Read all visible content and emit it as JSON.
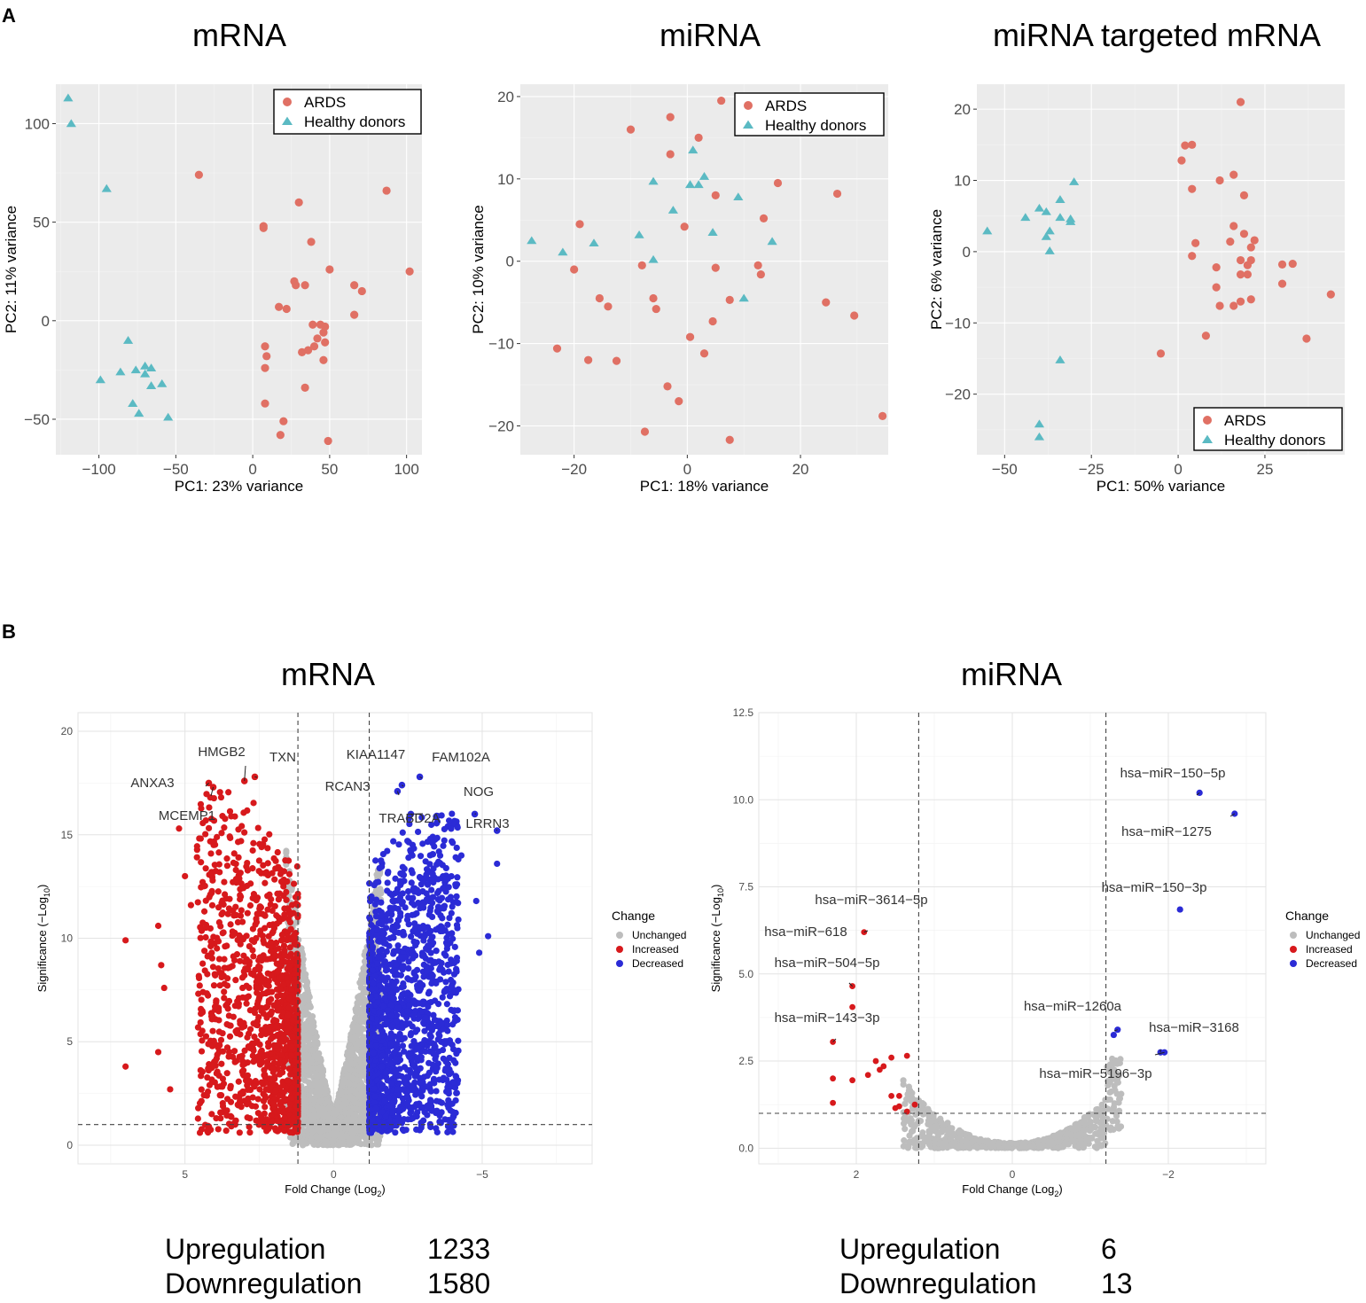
{
  "panel_labels": {
    "a": "A",
    "b": "B"
  },
  "colors": {
    "ards": "#e07064",
    "healthy": "#5bbac3",
    "unchanged": "#bdbdbd",
    "increased": "#d7191c",
    "decreased": "#2b2bd6"
  },
  "chart_data": [
    {
      "id": "pca_mrna",
      "type": "scatter",
      "title": "mRNA",
      "xlabel": "PC1: 23% variance",
      "ylabel": "PC2: 11% variance",
      "xlim": [
        -128,
        110
      ],
      "ylim": [
        -68,
        120
      ],
      "xticks": [
        -100,
        -50,
        0,
        50,
        100
      ],
      "yticks": [
        -50,
        0,
        50,
        100
      ],
      "legend": {
        "position": "top-right",
        "entries": [
          "ARDS",
          "Healthy donors"
        ]
      },
      "series": [
        {
          "name": "ARDS",
          "points": [
            [
              -35,
              74
            ],
            [
              7,
              48
            ],
            [
              7,
              47
            ],
            [
              30,
              60
            ],
            [
              38,
              40
            ],
            [
              87,
              66
            ],
            [
              102,
              25
            ],
            [
              50,
              26
            ],
            [
              27,
              20
            ],
            [
              28,
              18
            ],
            [
              34,
              18
            ],
            [
              66,
              18
            ],
            [
              71,
              15
            ],
            [
              17,
              7
            ],
            [
              22,
              6
            ],
            [
              66,
              3
            ],
            [
              39,
              -2
            ],
            [
              44,
              -2
            ],
            [
              47,
              -3
            ],
            [
              46,
              -6
            ],
            [
              42,
              -9
            ],
            [
              47,
              -11
            ],
            [
              40,
              -13
            ],
            [
              36,
              -15
            ],
            [
              32,
              -16
            ],
            [
              8,
              -13
            ],
            [
              9,
              -18
            ],
            [
              46,
              -20
            ],
            [
              8,
              -24
            ],
            [
              34,
              -34
            ],
            [
              8,
              -42
            ],
            [
              20,
              -51
            ],
            [
              18,
              -58
            ],
            [
              49,
              -61
            ]
          ]
        },
        {
          "name": "Healthy donors",
          "points": [
            [
              -120,
              113
            ],
            [
              -118,
              100
            ],
            [
              -95,
              67
            ],
            [
              -81,
              -10
            ],
            [
              -99,
              -30
            ],
            [
              -86,
              -26
            ],
            [
              -76,
              -25
            ],
            [
              -70,
              -23
            ],
            [
              -66,
              -24
            ],
            [
              -70,
              -27
            ],
            [
              -66,
              -33
            ],
            [
              -59,
              -32
            ],
            [
              -78,
              -42
            ],
            [
              -74,
              -47
            ],
            [
              -55,
              -49
            ]
          ]
        }
      ]
    },
    {
      "id": "pca_mirna",
      "type": "scatter",
      "title": "miRNA",
      "xlabel": "PC1: 18% variance",
      "ylabel": "PC2: 10% variance",
      "xlim": [
        -29.5,
        35.5
      ],
      "ylim": [
        -23.5,
        21.5
      ],
      "xticks": [
        -20,
        0,
        20
      ],
      "yticks": [
        -20,
        -10,
        0,
        10,
        20
      ],
      "legend": {
        "position": "top-right",
        "entries": [
          "ARDS",
          "Healthy donors"
        ]
      },
      "series": [
        {
          "name": "ARDS",
          "points": [
            [
              6,
              19.5
            ],
            [
              -3,
              17.5
            ],
            [
              -10,
              16
            ],
            [
              2,
              15
            ],
            [
              -3,
              13
            ],
            [
              16,
              9.5
            ],
            [
              26.5,
              8.2
            ],
            [
              5,
              8
            ],
            [
              13.5,
              5.2
            ],
            [
              -19,
              4.5
            ],
            [
              -0.5,
              4.2
            ],
            [
              5,
              -0.8
            ],
            [
              -8,
              -0.5
            ],
            [
              -20,
              -1
            ],
            [
              12.5,
              -0.5
            ],
            [
              13,
              -1.6
            ],
            [
              -15.5,
              -4.5
            ],
            [
              -6,
              -4.5
            ],
            [
              -14,
              -5.5
            ],
            [
              -5.5,
              -5.8
            ],
            [
              7.5,
              -4.7
            ],
            [
              24.5,
              -5
            ],
            [
              29.5,
              -6.6
            ],
            [
              4.5,
              -7.3
            ],
            [
              0.5,
              -9.2
            ],
            [
              -23,
              -10.6
            ],
            [
              3,
              -11.2
            ],
            [
              -17.5,
              -12
            ],
            [
              -12.5,
              -12.1
            ],
            [
              -3.5,
              -15.2
            ],
            [
              -1.5,
              -17
            ],
            [
              -7.5,
              -20.7
            ],
            [
              7.5,
              -21.7
            ],
            [
              34.5,
              -18.8
            ]
          ]
        },
        {
          "name": "Healthy donors",
          "points": [
            [
              1,
              13.5
            ],
            [
              3,
              10.3
            ],
            [
              -6,
              9.7
            ],
            [
              0.5,
              9.3
            ],
            [
              2,
              9.3
            ],
            [
              9,
              7.8
            ],
            [
              -2.5,
              6.2
            ],
            [
              -22,
              1.1
            ],
            [
              -27.5,
              2.5
            ],
            [
              -16.5,
              2.2
            ],
            [
              -8.5,
              3.2
            ],
            [
              4.5,
              3.5
            ],
            [
              -6,
              0.2
            ],
            [
              15,
              2.4
            ],
            [
              10,
              -4.5
            ]
          ]
        }
      ]
    },
    {
      "id": "pca_targeted",
      "type": "scatter",
      "title": "miRNA targeted mRNA",
      "xlabel": "PC1: 50% variance",
      "ylabel": "PC2: 6% variance",
      "xlim": [
        -58,
        48
      ],
      "ylim": [
        -28.5,
        23.5
      ],
      "xticks": [
        -50,
        -25,
        0,
        25
      ],
      "yticks": [
        -20,
        -10,
        0,
        10,
        20
      ],
      "legend": {
        "position": "bottom-right",
        "entries": [
          "ARDS",
          "Healthy donors"
        ]
      },
      "series": [
        {
          "name": "ARDS",
          "points": [
            [
              18,
              21
            ],
            [
              4,
              15
            ],
            [
              2,
              14.9
            ],
            [
              1,
              12.8
            ],
            [
              16,
              10.8
            ],
            [
              12,
              10
            ],
            [
              4,
              8.8
            ],
            [
              19,
              7.9
            ],
            [
              16,
              3.6
            ],
            [
              19,
              2.5
            ],
            [
              22,
              1.6
            ],
            [
              15,
              1.4
            ],
            [
              21,
              0.6
            ],
            [
              5,
              1.2
            ],
            [
              21,
              -1.2
            ],
            [
              18,
              -1.2
            ],
            [
              20,
              -1.9
            ],
            [
              4,
              -0.6
            ],
            [
              30,
              -1.8
            ],
            [
              33,
              -1.7
            ],
            [
              11,
              -2.2
            ],
            [
              18,
              -3.2
            ],
            [
              20,
              -3.2
            ],
            [
              11,
              -5.0
            ],
            [
              30,
              -4.5
            ],
            [
              44,
              -6.0
            ],
            [
              21,
              -6.7
            ],
            [
              18,
              -7.0
            ],
            [
              16,
              -7.6
            ],
            [
              12,
              -7.6
            ],
            [
              8,
              -11.8
            ],
            [
              37,
              -12.2
            ],
            [
              -5,
              -14.3
            ]
          ]
        },
        {
          "name": "Healthy donors",
          "points": [
            [
              -30,
              9.8
            ],
            [
              -34,
              7.3
            ],
            [
              -40,
              6.1
            ],
            [
              -44,
              4.8
            ],
            [
              -38,
              5.6
            ],
            [
              -34,
              4.8
            ],
            [
              -31,
              4.6
            ],
            [
              -31,
              4.2
            ],
            [
              -37,
              2.9
            ],
            [
              -38,
              2.1
            ],
            [
              -55,
              2.9
            ],
            [
              -37,
              0.1
            ],
            [
              -34,
              -15.2
            ],
            [
              -40,
              -24.2
            ],
            [
              -40,
              -26.0
            ]
          ]
        }
      ]
    },
    {
      "id": "volcano_mrna",
      "type": "scatter",
      "title": "mRNA",
      "xlabel": "Fold Change (Log",
      "xlabel_sub": "2",
      "xlabel_end": ")",
      "ylabel": "Significance (−Log",
      "ylabel_sub": "10",
      "ylabel_end": ")",
      "xlim": [
        8.6,
        -8.7
      ],
      "ylim": [
        -0.9,
        20.9
      ],
      "xticks": [
        5,
        0,
        -5
      ],
      "xtick_labels": [
        "5",
        "0",
        "−5"
      ],
      "yticks": [
        0,
        5,
        10,
        15,
        20
      ],
      "thresholds": {
        "x": [
          1.2,
          -1.2
        ],
        "y": 1
      },
      "legend": {
        "title": "Change",
        "entries": [
          "Unchanged",
          "Increased",
          "Decreased"
        ]
      },
      "labels": [
        {
          "text": "HMGB2",
          "x": 3.0,
          "y": 17.6
        },
        {
          "text": "TXN",
          "x": 2.65,
          "y": 17.8
        },
        {
          "text": "ANXA3",
          "x": 4.2,
          "y": 17.5
        },
        {
          "text": "MCEMP1",
          "x": 4.05,
          "y": 17.3
        },
        {
          "text": "KIAA1147",
          "x": -2.3,
          "y": 17.4
        },
        {
          "text": "FAM102A",
          "x": -2.9,
          "y": 17.8
        },
        {
          "text": "RCAN3",
          "x": -2.15,
          "y": 17.1
        },
        {
          "text": "NOG",
          "x": -4.75,
          "y": 16.0
        },
        {
          "text": "TRABD2A",
          "x": -2.6,
          "y": 16.0
        },
        {
          "text": "LRRN3",
          "x": -5.5,
          "y": 15.2
        }
      ],
      "extra_points": {
        "Increased": [
          [
            7.0,
            9.9
          ],
          [
            7.0,
            3.8
          ],
          [
            5.9,
            10.6
          ],
          [
            5.8,
            8.7
          ],
          [
            5.7,
            7.6
          ],
          [
            5.9,
            4.5
          ],
          [
            5.5,
            2.7
          ],
          [
            5.0,
            13.0
          ],
          [
            5.2,
            15.3
          ],
          [
            4.8,
            11.6
          ]
        ],
        "Decreased": [
          [
            -4.3,
            14.0
          ],
          [
            -5.2,
            10.1
          ],
          [
            -5.5,
            13.6
          ],
          [
            -4.8,
            11.8
          ],
          [
            -4.1,
            12.6
          ],
          [
            -4.9,
            9.3
          ]
        ]
      }
    },
    {
      "id": "volcano_mirna",
      "type": "scatter",
      "title": "miRNA",
      "xlabel": "Fold Change (Log",
      "xlabel_sub": "2",
      "xlabel_end": ")",
      "ylabel": "Significance (−Log",
      "ylabel_sub": "10",
      "ylabel_end": ")",
      "xlim": [
        3.25,
        -3.25
      ],
      "ylim": [
        -0.45,
        12.5
      ],
      "xticks": [
        2,
        0,
        -2
      ],
      "xtick_labels": [
        "2",
        "0",
        "−2"
      ],
      "yticks": [
        0.0,
        2.5,
        5.0,
        7.5,
        10.0,
        12.5
      ],
      "ytick_labels": [
        "0.0",
        "2.5",
        "5.0",
        "7.5",
        "10.0",
        "12.5"
      ],
      "thresholds": {
        "x": [
          1.2,
          -1.2
        ],
        "y": 1
      },
      "legend": {
        "title": "Change",
        "entries": [
          "Unchanged",
          "Increased",
          "Decreased"
        ]
      },
      "labels": [
        {
          "text": "hsa−miR−150−5p",
          "x": -2.4,
          "y": 10.2
        },
        {
          "text": "hsa−miR−1275",
          "x": -2.85,
          "y": 9.6
        },
        {
          "text": "hsa−miR−150−3p",
          "x": -2.15,
          "y": 6.85
        },
        {
          "text": "hsa−miR−3614−5p",
          "x": 1.9,
          "y": 6.2
        },
        {
          "text": "hsa−miR−618",
          "x": 2.05,
          "y": 4.65
        },
        {
          "text": "hsa−miR−504−5p",
          "x": 2.05,
          "y": 4.65
        },
        {
          "text": "hsa−miR−143−3p",
          "x": 2.3,
          "y": 3.05
        },
        {
          "text": "hsa−miR−1260a",
          "x": -1.35,
          "y": 3.4
        },
        {
          "text": "hsa−miR−3168",
          "x": -1.9,
          "y": 2.75
        },
        {
          "text": "hsa−miR−5196−3p",
          "x": -1.95,
          "y": 2.75
        }
      ],
      "points": {
        "Increased": [
          [
            1.9,
            6.2
          ],
          [
            2.05,
            4.65
          ],
          [
            2.05,
            4.05
          ],
          [
            2.3,
            3.05
          ],
          [
            1.55,
            2.6
          ],
          [
            1.75,
            2.5
          ],
          [
            1.65,
            2.35
          ],
          [
            1.7,
            2.25
          ],
          [
            1.35,
            2.65
          ],
          [
            1.85,
            2.1
          ],
          [
            2.3,
            2.0
          ],
          [
            2.05,
            1.95
          ],
          [
            1.55,
            1.5
          ],
          [
            1.45,
            1.5
          ],
          [
            1.25,
            1.25
          ],
          [
            1.45,
            1.2
          ],
          [
            1.35,
            1.05
          ],
          [
            2.3,
            1.3
          ],
          [
            1.5,
            1.15
          ]
        ],
        "Decreased": [
          [
            -2.4,
            10.2
          ],
          [
            -2.85,
            9.6
          ],
          [
            -2.15,
            6.85
          ],
          [
            -1.35,
            3.4
          ],
          [
            -1.3,
            3.25
          ],
          [
            -1.9,
            2.75
          ],
          [
            -1.95,
            2.75
          ]
        ]
      }
    }
  ],
  "summaries": {
    "mrna": {
      "up_label": "Upregulation",
      "up_value": "1233",
      "down_label": "Downregulation",
      "down_value": "1580"
    },
    "mirna": {
      "up_label": "Upregulation",
      "up_value": "6",
      "down_label": "Downregulation",
      "down_value": "13"
    }
  }
}
